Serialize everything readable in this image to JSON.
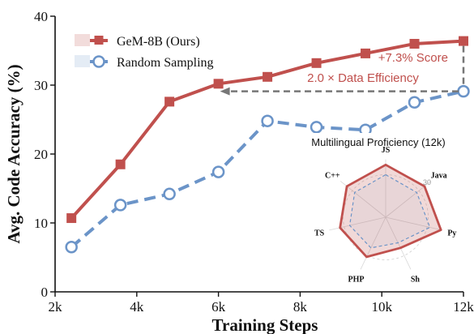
{
  "chart_data": {
    "type": "line",
    "xlabel": "Training Steps",
    "ylabel": "Avg. Code Accuracy (%)",
    "xlim": [
      2000,
      12000
    ],
    "ylim": [
      0,
      40
    ],
    "x_ticks": [
      {
        "value": 2000,
        "label": "2k"
      },
      {
        "value": 4000,
        "label": "4k"
      },
      {
        "value": 6000,
        "label": "6k"
      },
      {
        "value": 8000,
        "label": "8k"
      },
      {
        "value": 10000,
        "label": "10k"
      },
      {
        "value": 12000,
        "label": "12k"
      }
    ],
    "y_ticks": [
      {
        "value": 0,
        "label": "0"
      },
      {
        "value": 10,
        "label": "10"
      },
      {
        "value": 20,
        "label": "20"
      },
      {
        "value": 30,
        "label": "30"
      },
      {
        "value": 40,
        "label": "40"
      }
    ],
    "legend_position": "top-left",
    "series": [
      {
        "name": "GeM-8B (Ours)",
        "color": "#c0504d",
        "marker": "square",
        "dash": "solid",
        "x": [
          2400,
          3600,
          4800,
          6000,
          7200,
          8400,
          9600,
          10800,
          12000
        ],
        "y": [
          10.7,
          18.5,
          27.6,
          30.2,
          31.2,
          33.2,
          34.6,
          36.0,
          36.4
        ]
      },
      {
        "name": "Random Sampling",
        "color": "#6b94c8",
        "marker": "circle",
        "dash": "dashed",
        "x": [
          2400,
          3600,
          4800,
          6000,
          7200,
          8400,
          9600,
          10800,
          12000
        ],
        "y": [
          6.5,
          12.6,
          14.2,
          17.4,
          24.8,
          23.9,
          23.5,
          27.5,
          29.1
        ]
      }
    ],
    "annotations": {
      "score_label": "+7.3% Score",
      "efficiency_label": "2.0 × Data Efficiency",
      "arrow_color": "#777777",
      "label_color": "#c0504d"
    },
    "inset": {
      "type": "radar",
      "title": "Multilingual Proficiency (12k)",
      "axes": [
        "JS",
        "Java",
        "Py",
        "Sh",
        "PHP",
        "TS",
        "C++"
      ],
      "rlim": [
        0,
        40
      ],
      "ring_label": "30",
      "series": [
        {
          "values": [
            37,
            35,
            40,
            24,
            31,
            33,
            35
          ],
          "color": "#c0504d"
        },
        {
          "values": [
            30,
            28,
            32,
            20,
            24,
            26,
            28
          ],
          "color": "#6b94c8"
        }
      ]
    }
  }
}
